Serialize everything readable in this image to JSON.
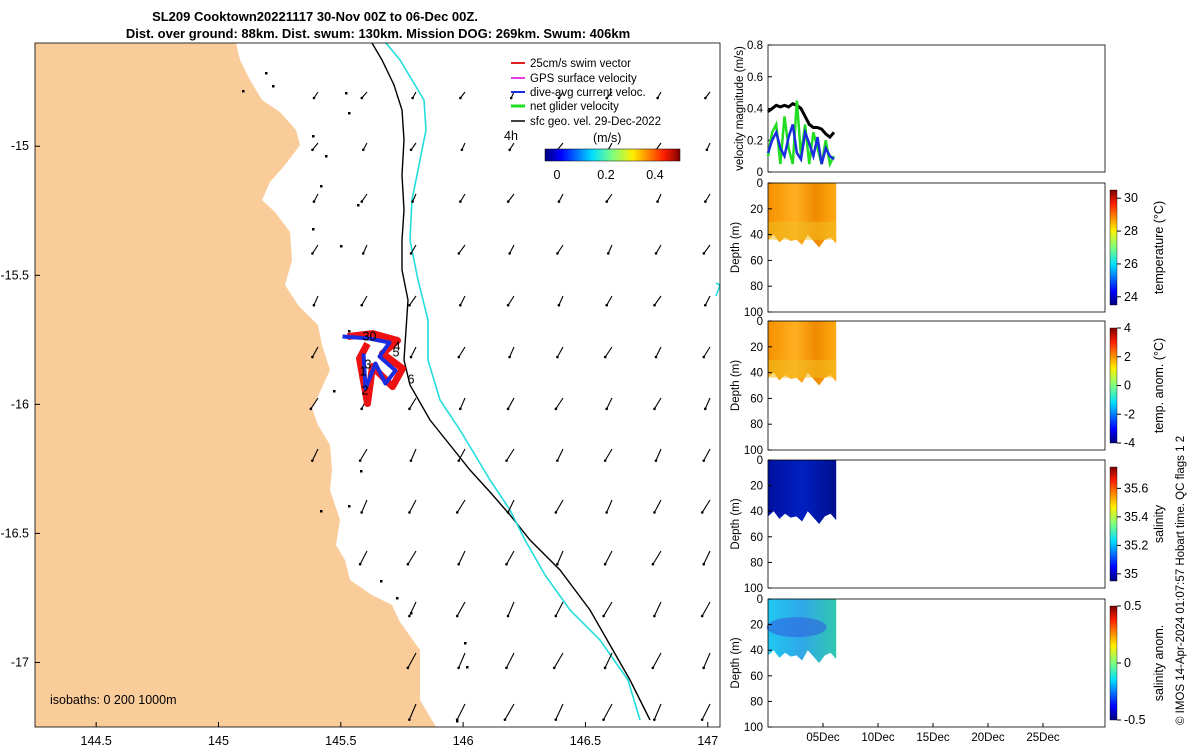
{
  "header": {
    "title_line1": "SL209 Cooktown20221117 30-Nov 00Z to 06-Dec 00Z.",
    "title_line2": "Dist. over ground: 88km. Dist. swum: 130km. Mission DOG: 269km. Swum: 406km"
  },
  "map": {
    "legend": {
      "items": [
        {
          "label": "25cm/s swim vector",
          "color": "#e02020"
        },
        {
          "label": "GPS surface velocity",
          "color": "#e040e0"
        },
        {
          "label": "dive-avg current veloc.",
          "color": "#1a2be0"
        },
        {
          "label": "net glider velocity",
          "color": "#22dd22"
        },
        {
          "label": "sfc geo. vel. 29-Dec-2022",
          "color": "#000000"
        }
      ],
      "speed_label": "4h",
      "colorbar_title": "(m/s)",
      "colorbar_ticks": [
        "0",
        "0.2",
        "0.4"
      ]
    },
    "isobath_label": "isobaths: 0   200  1000m",
    "track_labels": [
      "30",
      "1",
      "2",
      "3",
      "4",
      "5",
      "6"
    ],
    "colors": {
      "land": "#f9cc9a",
      "isobath_200": "#000000",
      "isobath_1000": "#22dddd",
      "track_red": "#ee1111",
      "track_blue": "#1a2be0"
    }
  },
  "side": {
    "watermark": "© IMOS 14-Apr-2024 01:07:57 Hobart time. QC flags 1  2"
  },
  "chart_data": [
    {
      "type": "map",
      "xlabel": "",
      "ylabel": "",
      "xlim": [
        144.25,
        147.05
      ],
      "ylim": [
        -17.25,
        -14.6
      ],
      "x_ticks": [
        "144.5",
        "145",
        "145.5",
        "146",
        "146.5",
        "147"
      ],
      "y_ticks": [
        "-15",
        "-15.5",
        "-16",
        "-16.5",
        "-17"
      ],
      "glider_track_center": {
        "lon": 145.65,
        "lat": -15.9
      }
    },
    {
      "type": "line",
      "ylabel": "velocity magnitude (m/s)",
      "ylim": [
        0,
        0.8
      ],
      "y_ticks": [
        "0",
        "0.2",
        "0.4",
        "0.6",
        "0.8"
      ],
      "x_range_days": "30-Nov to 06-Dec",
      "series": [
        {
          "color": "#000000",
          "values": [
            0.38,
            0.4,
            0.42,
            0.41,
            0.42,
            0.41,
            0.43,
            0.42,
            0.4,
            0.35,
            0.3,
            0.28,
            0.28,
            0.27,
            0.24,
            0.22,
            0.25
          ]
        },
        {
          "color": "#22dd22",
          "values": [
            0.1,
            0.25,
            0.3,
            0.05,
            0.35,
            0.15,
            0.05,
            0.45,
            0.1,
            0.3,
            0.05,
            0.25,
            0.15,
            0.05,
            0.2,
            0.05,
            0.1
          ]
        },
        {
          "color": "#1a2be0",
          "values": [
            0.12,
            0.2,
            0.25,
            0.15,
            0.1,
            0.22,
            0.3,
            0.12,
            0.08,
            0.25,
            0.18,
            0.1,
            0.22,
            0.05,
            0.15,
            0.1,
            0.08
          ]
        }
      ]
    },
    {
      "type": "heatmap",
      "ylabel": "Depth (m)",
      "cbar_label": "temperature (°C)",
      "y_ticks": [
        "0",
        "20",
        "40",
        "60",
        "80",
        "100"
      ],
      "cbar_ticks": [
        "30",
        "28",
        "26",
        "24"
      ],
      "clim": [
        23.5,
        30.5
      ]
    },
    {
      "type": "heatmap",
      "ylabel": "Depth (m)",
      "cbar_label": "temp. anom. (°C)",
      "y_ticks": [
        "0",
        "20",
        "40",
        "60",
        "80",
        "100"
      ],
      "cbar_ticks": [
        "4",
        "2",
        "0",
        "-2",
        "-4"
      ],
      "clim": [
        -4,
        4
      ]
    },
    {
      "type": "heatmap",
      "ylabel": "Depth (m)",
      "cbar_label": "salinity",
      "y_ticks": [
        "0",
        "20",
        "40",
        "60",
        "80",
        "100"
      ],
      "cbar_ticks": [
        "35.6",
        "35.4",
        "35.2",
        "35"
      ],
      "clim": [
        34.95,
        35.75
      ]
    },
    {
      "type": "heatmap",
      "ylabel": "Depth (m)",
      "cbar_label": "salinity anom.",
      "y_ticks": [
        "0",
        "20",
        "40",
        "60",
        "80",
        "100"
      ],
      "cbar_ticks": [
        "0.5",
        "0",
        "-0.5"
      ],
      "clim": [
        -0.5,
        0.5
      ],
      "x_ticks": [
        "05Dec",
        "10Dec",
        "15Dec",
        "20Dec",
        "25Dec"
      ]
    }
  ]
}
